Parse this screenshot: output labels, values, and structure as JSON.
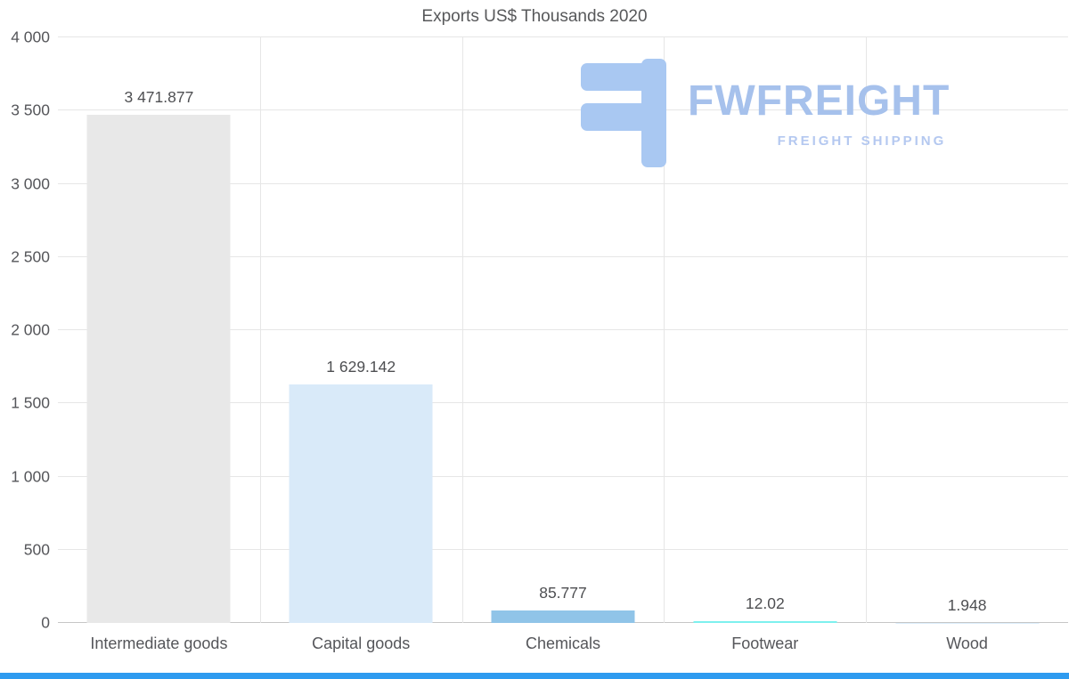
{
  "page": {
    "background": "#ffffff"
  },
  "chart_data": {
    "type": "bar",
    "title": "Exports US$ Thousands 2020",
    "categories": [
      "Intermediate goods",
      "Capital goods",
      "Chemicals",
      "Footwear",
      "Wood"
    ],
    "values": [
      3471.877,
      1629.142,
      85.777,
      12.02,
      1.948
    ],
    "value_labels": [
      "3 471.877",
      "1 629.142",
      "85.777",
      "12.02",
      "1.948"
    ],
    "bar_colors": [
      "#e8e8e8",
      "#d9eaf9",
      "#90c4e8",
      "#7df0ee",
      "#dcedfb"
    ],
    "ylim": [
      0,
      4000
    ],
    "yticks": [
      0,
      500,
      1000,
      1500,
      2000,
      2500,
      3000,
      3500,
      4000
    ],
    "ytick_labels": [
      "0",
      "500",
      "1 000",
      "1 500",
      "2 000",
      "2 500",
      "3 000",
      "3 500",
      "4 000"
    ],
    "xlabel": "",
    "ylabel": "",
    "grid": true,
    "legend": false,
    "grid_color": "#e6e6e6",
    "axis_line_color": "#c6c6c6",
    "text_color": "#55565a"
  },
  "watermark": {
    "icon": "fwfreight-logo-icon",
    "brand": "FWFREIGHT",
    "tagline": "FREIGHT SHIPPING",
    "brand_color": "#a6c1ec",
    "tagline_color": "#b4c8f0",
    "icon_color": "#a9c8f2"
  },
  "footer": {
    "color": "#2e9bf0"
  }
}
